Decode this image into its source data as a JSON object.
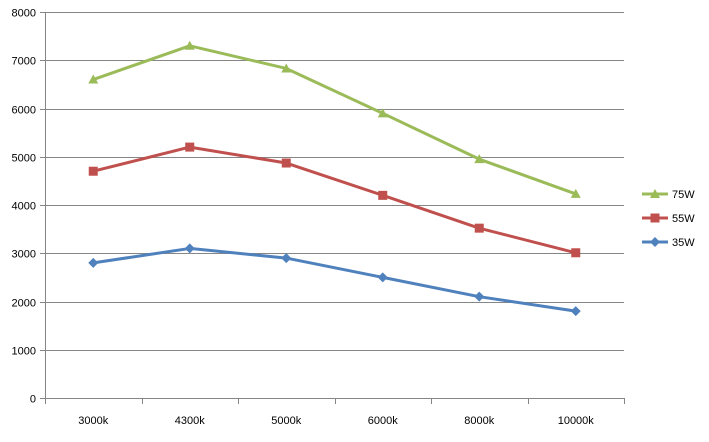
{
  "chart_data": {
    "type": "line",
    "categories": [
      "3000k",
      "4300k",
      "5000k",
      "6000k",
      "8000k",
      "10000k"
    ],
    "ylim": [
      0,
      8000
    ],
    "yticks": [
      0,
      1000,
      2000,
      3000,
      4000,
      5000,
      6000,
      7000,
      8000
    ],
    "grid": true,
    "legend_position": "right",
    "series": [
      {
        "name": "75W",
        "color": "#9BBB59",
        "marker": "triangle",
        "values": [
          6600,
          7300,
          6830,
          5900,
          4950,
          4230
        ]
      },
      {
        "name": "55W",
        "color": "#C0504D",
        "marker": "square",
        "values": [
          4700,
          5200,
          4870,
          4200,
          3520,
          3010
        ]
      },
      {
        "name": "35W",
        "color": "#4F81BD",
        "marker": "diamond",
        "values": [
          2800,
          3100,
          2900,
          2500,
          2100,
          1800
        ]
      }
    ]
  }
}
